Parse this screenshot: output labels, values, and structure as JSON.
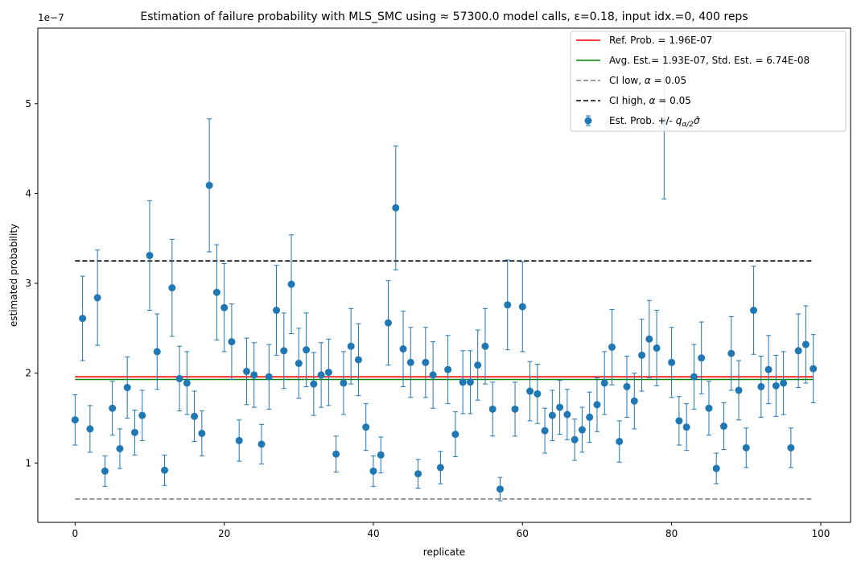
{
  "chart_data": {
    "type": "scatter",
    "title": "Estimation of failure probability with MLS_SMC using ≈ 57300.0 model calls, ε=0.18, input idx.=0, 400 reps",
    "xlabel": "replicate",
    "ylabel": "estimated probability",
    "y_offset_text": "1e−7",
    "xlim": [
      -5,
      104
    ],
    "ylim": [
      0.34,
      5.84
    ],
    "xticks": [
      0,
      20,
      40,
      60,
      80,
      100
    ],
    "yticks": [
      1,
      2,
      3,
      4,
      5
    ],
    "grid": false,
    "legend_position": "top-right",
    "colors": {
      "points": "#1f77b4",
      "ref": "#ff0000",
      "avg": "#008000",
      "ci_low": "#808080",
      "ci_high": "#000000"
    },
    "legend": [
      {
        "key": "ref",
        "label": "Ref. Prob. = 1.96E-07"
      },
      {
        "key": "avg",
        "label": "Avg. Est.= 1.93E-07, Std. Est. = 6.74E-08"
      },
      {
        "key": "ci_low",
        "label_parts": [
          "CI low, ",
          "α",
          " = 0.05"
        ]
      },
      {
        "key": "ci_high",
        "label_parts": [
          "CI high, ",
          "α",
          " = 0.05"
        ]
      },
      {
        "key": "points",
        "label_parts": [
          "Est. Prob. +/- ",
          "q",
          "α/2",
          "σ̂"
        ]
      }
    ],
    "lines": {
      "ref": {
        "y": 1.96,
        "x_range": [
          0,
          99
        ]
      },
      "avg": {
        "y": 1.93,
        "x_range": [
          0,
          99
        ]
      },
      "ci_low": {
        "y": 0.6,
        "x_range": [
          0,
          99
        ]
      },
      "ci_high": {
        "y": 3.25,
        "x_range": [
          0,
          99
        ]
      }
    },
    "series": [
      {
        "x": [
          0,
          1,
          2,
          3,
          4,
          5,
          6,
          7,
          8,
          9,
          10,
          11,
          12,
          13,
          14,
          15,
          16,
          17,
          18,
          19,
          20,
          21,
          22,
          23,
          24,
          25,
          26,
          27,
          28,
          29,
          30,
          31,
          32,
          33,
          34,
          35,
          36,
          37,
          38,
          39,
          40,
          41,
          42,
          43,
          44,
          45,
          46,
          47,
          48,
          49,
          50,
          51,
          52,
          53,
          54,
          55,
          56,
          57,
          58,
          59,
          60,
          61,
          62,
          63,
          64,
          65,
          66,
          67,
          68,
          69,
          70,
          71,
          72,
          73,
          74,
          75,
          76,
          77,
          78,
          79,
          80,
          81,
          82,
          83,
          84,
          85,
          86,
          87,
          88,
          89,
          90,
          91,
          92,
          93,
          94,
          95,
          96,
          97,
          98,
          99
        ],
        "y": [
          1.48,
          2.61,
          1.38,
          2.84,
          0.91,
          1.61,
          1.16,
          1.84,
          1.34,
          1.53,
          3.31,
          2.24,
          0.92,
          2.95,
          1.94,
          1.89,
          1.52,
          1.33,
          4.09,
          2.9,
          2.73,
          2.35,
          1.25,
          2.02,
          1.98,
          1.21,
          1.96,
          2.7,
          2.25,
          2.99,
          2.11,
          2.26,
          1.88,
          1.98,
          2.01,
          1.1,
          1.89,
          2.3,
          2.15,
          1.4,
          0.91,
          1.09,
          2.56,
          3.84,
          2.27,
          2.12,
          0.88,
          2.12,
          1.98,
          0.95,
          2.04,
          1.32,
          1.9,
          1.9,
          2.09,
          2.3,
          1.6,
          0.71,
          2.76,
          1.6,
          2.74,
          1.8,
          1.77,
          1.36,
          1.53,
          1.62,
          1.54,
          1.26,
          1.37,
          1.51,
          1.65,
          1.89,
          2.29,
          1.24,
          1.85,
          1.69,
          2.2,
          2.38,
          2.28,
          4.8,
          2.12,
          1.47,
          1.4,
          1.96,
          2.17,
          1.61,
          0.94,
          1.41,
          2.22,
          1.81,
          1.17,
          2.7,
          1.85,
          2.04,
          1.86,
          1.89,
          1.17,
          2.25,
          2.32,
          2.05
        ],
        "err": [
          0.28,
          0.47,
          0.26,
          0.53,
          0.17,
          0.3,
          0.22,
          0.34,
          0.25,
          0.28,
          0.61,
          0.42,
          0.17,
          0.54,
          0.36,
          0.35,
          0.28,
          0.25,
          0.74,
          0.53,
          0.49,
          0.42,
          0.23,
          0.37,
          0.36,
          0.22,
          0.36,
          0.5,
          0.42,
          0.55,
          0.39,
          0.41,
          0.35,
          0.36,
          0.37,
          0.2,
          0.35,
          0.42,
          0.4,
          0.26,
          0.17,
          0.2,
          0.47,
          0.69,
          0.42,
          0.39,
          0.16,
          0.39,
          0.37,
          0.18,
          0.38,
          0.25,
          0.35,
          0.35,
          0.39,
          0.42,
          0.3,
          0.13,
          0.5,
          0.3,
          0.5,
          0.33,
          0.33,
          0.25,
          0.28,
          0.3,
          0.28,
          0.23,
          0.25,
          0.28,
          0.3,
          0.35,
          0.42,
          0.23,
          0.34,
          0.31,
          0.4,
          0.43,
          0.42,
          0.86,
          0.39,
          0.27,
          0.26,
          0.36,
          0.4,
          0.3,
          0.17,
          0.26,
          0.41,
          0.33,
          0.22,
          0.49,
          0.34,
          0.38,
          0.34,
          0.35,
          0.22,
          0.41,
          0.43,
          0.38
        ]
      }
    ]
  }
}
